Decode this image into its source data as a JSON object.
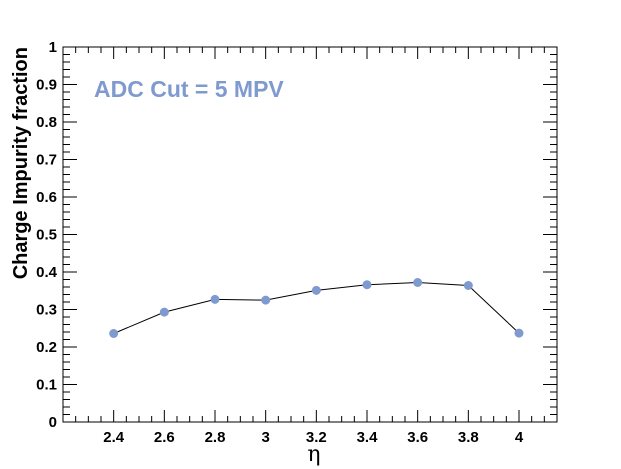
{
  "chart_data": {
    "type": "line",
    "title": "",
    "xlabel": "η",
    "ylabel": "Charge Impurity fraction",
    "annotation": "ADC Cut = 5 MPV",
    "xlim": [
      2.2,
      4.15
    ],
    "ylim": [
      0,
      1
    ],
    "x_ticks": [
      2.4,
      2.6,
      2.8,
      3,
      3.2,
      3.4,
      3.6,
      3.8,
      4
    ],
    "x_tick_labels": [
      "2.4",
      "2.6",
      "2.8",
      "3",
      "3.2",
      "3.4",
      "3.6",
      "3.8",
      "4"
    ],
    "y_ticks": [
      0,
      0.1,
      0.2,
      0.3,
      0.4,
      0.5,
      0.6,
      0.7,
      0.8,
      0.9,
      1
    ],
    "y_tick_labels": [
      "0",
      "0.1",
      "0.2",
      "0.3",
      "0.4",
      "0.5",
      "0.6",
      "0.7",
      "0.8",
      "0.9",
      "1"
    ],
    "grid": false,
    "series": [
      {
        "x": [
          2.4,
          2.6,
          2.8,
          3.0,
          3.2,
          3.4,
          3.6,
          3.8,
          4.0
        ],
        "y": [
          0.236,
          0.293,
          0.327,
          0.325,
          0.351,
          0.366,
          0.372,
          0.364,
          0.237
        ],
        "marker_color": "#7f9acf",
        "line_color": "#000000"
      }
    ]
  }
}
